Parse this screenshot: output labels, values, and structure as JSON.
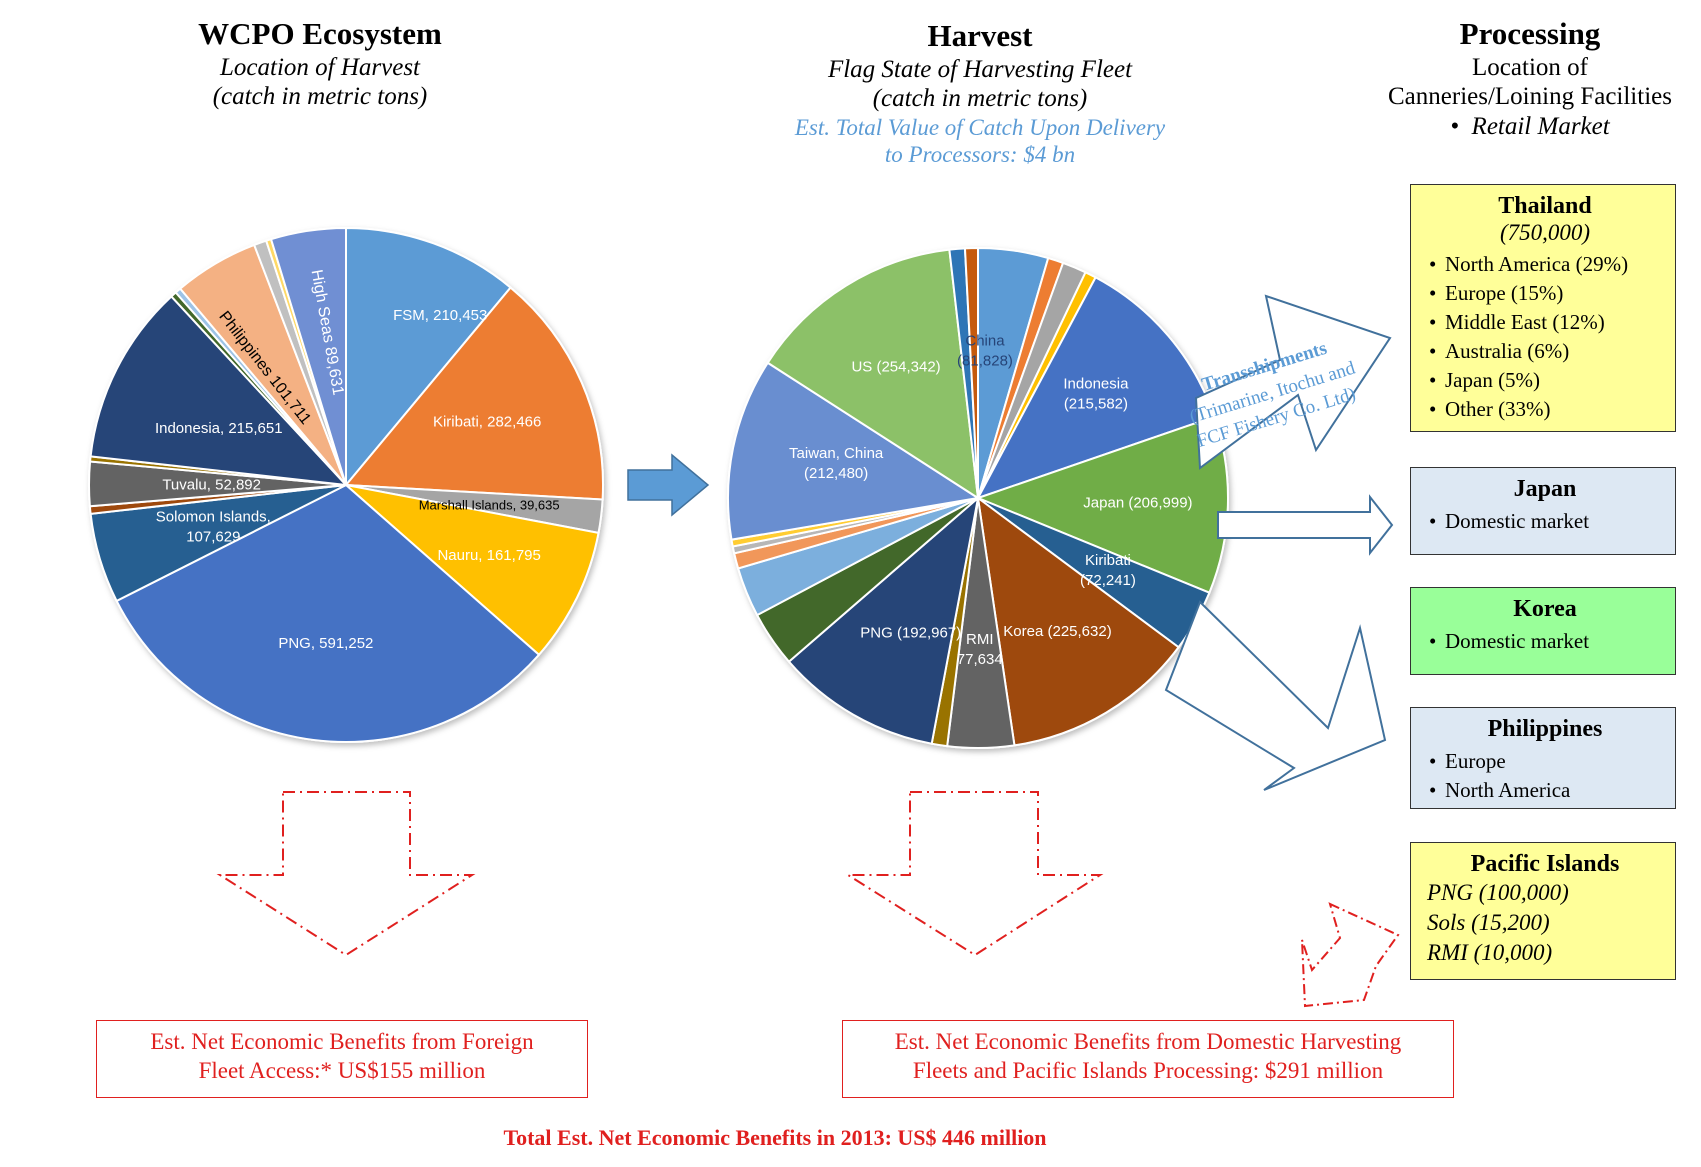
{
  "columns": {
    "ecosystem": {
      "title": "WCPO Ecosystem",
      "subtitle": "Location of Harvest",
      "unit": "(catch in metric tons)"
    },
    "harvest": {
      "title": "Harvest",
      "subtitle": "Flag State of Harvesting Fleet",
      "unit": "(catch in metric tons)",
      "value_line1": "Est. Total Value of Catch Upon Delivery",
      "value_line2": "to Processors: $4 bn"
    },
    "processing": {
      "title": "Processing",
      "line1": "Location of",
      "line2": "Canneries/Loining Facilities",
      "bullet": "Retail Market"
    }
  },
  "chart_data": [
    {
      "type": "pie",
      "title": "WCPO Ecosystem",
      "slices": [
        {
          "label": "FSM, 210,453",
          "value": 210453,
          "color": "#5b9bd5"
        },
        {
          "label": "Kiribati, 282,466",
          "value": 282466,
          "color": "#ed7d31"
        },
        {
          "label": "Marshall Islands, 39,635",
          "value": 39635,
          "color": "#a5a5a5"
        },
        {
          "label": "Nauru, 161,795",
          "value": 161795,
          "color": "#ffc000"
        },
        {
          "label": "PNG, 591,252",
          "value": 591252,
          "color": "#4472c4"
        },
        {
          "label": "Solomon Islands, 107,629",
          "value": 107629,
          "color": "#255e91"
        },
        {
          "label": "",
          "value": 9000,
          "color": "#9e480e"
        },
        {
          "label": "Tuvalu, 52,892",
          "value": 52892,
          "color": "#636363"
        },
        {
          "label": "",
          "value": 6000,
          "color": "#997300"
        },
        {
          "label": "Indonesia, 215,651",
          "value": 215651,
          "color": "#264478"
        },
        {
          "label": "",
          "value": 7000,
          "color": "#43682b"
        },
        {
          "label": "",
          "value": 7000,
          "color": "#9dc3e6"
        },
        {
          "label": "Philippines 101,711",
          "value": 101711,
          "color": "#f4b183"
        },
        {
          "label": "",
          "value": 15000,
          "color": "#c0c0c0"
        },
        {
          "label": "",
          "value": 6000,
          "color": "#ffd966"
        },
        {
          "label": "High Seas 89,631",
          "value": 89631,
          "color": "#6f8fd3"
        }
      ]
    },
    {
      "type": "pie",
      "title": "Harvest",
      "slices": [
        {
          "label": "China (81,828)",
          "value": 81828,
          "color": "#5b9bd5"
        },
        {
          "label": "",
          "value": 18000,
          "color": "#ed7d31"
        },
        {
          "label": "",
          "value": 28000,
          "color": "#a5a5a5"
        },
        {
          "label": "",
          "value": 13000,
          "color": "#ffc000"
        },
        {
          "label": "Indonesia (215,582)",
          "value": 215582,
          "color": "#4472c4"
        },
        {
          "label": "Japan (206,999)",
          "value": 206999,
          "color": "#70ad47"
        },
        {
          "label": "Kiribati (72,241)",
          "value": 72241,
          "color": "#255e91"
        },
        {
          "label": "Korea (225,632)",
          "value": 225632,
          "color": "#9e480e"
        },
        {
          "label": "RMI 77,634",
          "value": 77634,
          "color": "#636363"
        },
        {
          "label": "",
          "value": 18000,
          "color": "#997300"
        },
        {
          "label": "PNG (192,967)",
          "value": 192967,
          "color": "#264478"
        },
        {
          "label": "",
          "value": 65000,
          "color": "#43682b"
        },
        {
          "label": "",
          "value": 58000,
          "color": "#7cafdd"
        },
        {
          "label": "",
          "value": 18000,
          "color": "#f1975a"
        },
        {
          "label": "",
          "value": 8000,
          "color": "#b7b7b7"
        },
        {
          "label": "",
          "value": 8000,
          "color": "#ffcd33"
        },
        {
          "label": "Taiwan, China (212,480)",
          "value": 212480,
          "color": "#698ed0"
        },
        {
          "label": "US (254,342)",
          "value": 254342,
          "color": "#8cc168"
        },
        {
          "label": "",
          "value": 18000,
          "color": "#2e75b6"
        },
        {
          "label": "",
          "value": 15000,
          "color": "#c55a11"
        }
      ]
    }
  ],
  "transshipments": {
    "title": "Transshipments",
    "line1": "(Trimarine, Itochu and",
    "line2": "FCF Fishery Co. Ltd)"
  },
  "processors": [
    {
      "title": "Thailand",
      "subtitle": "(750,000)",
      "items": [
        "North America (29%)",
        "Europe (15%)",
        "Middle East (12%)",
        "Australia (6%)",
        "Japan (5%)",
        "Other (33%)"
      ],
      "bg": "#ffff99"
    },
    {
      "title": "Japan",
      "items": [
        "Domestic market"
      ],
      "bg": "#dde8f3"
    },
    {
      "title": "Korea",
      "items": [
        "Domestic market"
      ],
      "bg": "#99ff99"
    },
    {
      "title": "Philippines",
      "items": [
        "Europe",
        "North America"
      ],
      "bg": "#dde8f3"
    },
    {
      "title": "Pacific Islands",
      "plain": [
        "PNG (100,000)",
        "Sols (15,200)",
        "RMI (10,000)"
      ],
      "bg": "#ffff99"
    }
  ],
  "benefits": {
    "foreign_line1": "Est. Net Economic Benefits from Foreign",
    "foreign_line2": "Fleet Access:* US$155 million",
    "domestic_line1": "Est. Net Economic Benefits from Domestic Harvesting",
    "domestic_line2": "Fleets and Pacific Islands Processing: $291 million",
    "total": "Total Est. Net Economic Benefits in 2013: US$ 446 million"
  },
  "colors": {
    "accent_red": "#e0201f",
    "arrow_blue": "#5b9bd5",
    "outline_blue": "#41719c"
  }
}
